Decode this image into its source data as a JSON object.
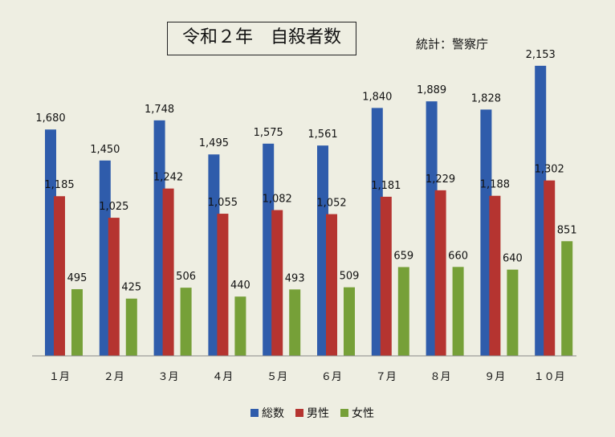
{
  "chart_data": {
    "type": "bar",
    "title": "令和２年　自殺者数",
    "source": "統計：警察庁",
    "categories": [
      "１月",
      "２月",
      "３月",
      "４月",
      "５月",
      "６月",
      "７月",
      "８月",
      "９月",
      "１０月"
    ],
    "series": [
      {
        "name": "総数",
        "color": "#2f5cab",
        "values": [
          1680,
          1450,
          1748,
          1495,
          1575,
          1561,
          1840,
          1889,
          1828,
          2153
        ],
        "labels": [
          "1,680",
          "1,450",
          "1,748",
          "1,495",
          "1,575",
          "1,561",
          "1,840",
          "1,889",
          "1,828",
          "2,153"
        ]
      },
      {
        "name": "男性",
        "color": "#b53430",
        "values": [
          1185,
          1025,
          1242,
          1055,
          1082,
          1052,
          1181,
          1229,
          1188,
          1302
        ],
        "labels": [
          "1,185",
          "1,025",
          "1,242",
          "1,055",
          "1,082",
          "1,052",
          "1,181",
          "1,229",
          "1,188",
          "1,302"
        ]
      },
      {
        "name": "女性",
        "color": "#76a038",
        "values": [
          495,
          425,
          506,
          440,
          493,
          509,
          659,
          660,
          640,
          851
        ],
        "labels": [
          "495",
          "425",
          "506",
          "440",
          "493",
          "509",
          "659",
          "660",
          "640",
          "851"
        ]
      }
    ],
    "ylim": [
      0,
      2200
    ],
    "grid": false,
    "legend": "bottom"
  }
}
